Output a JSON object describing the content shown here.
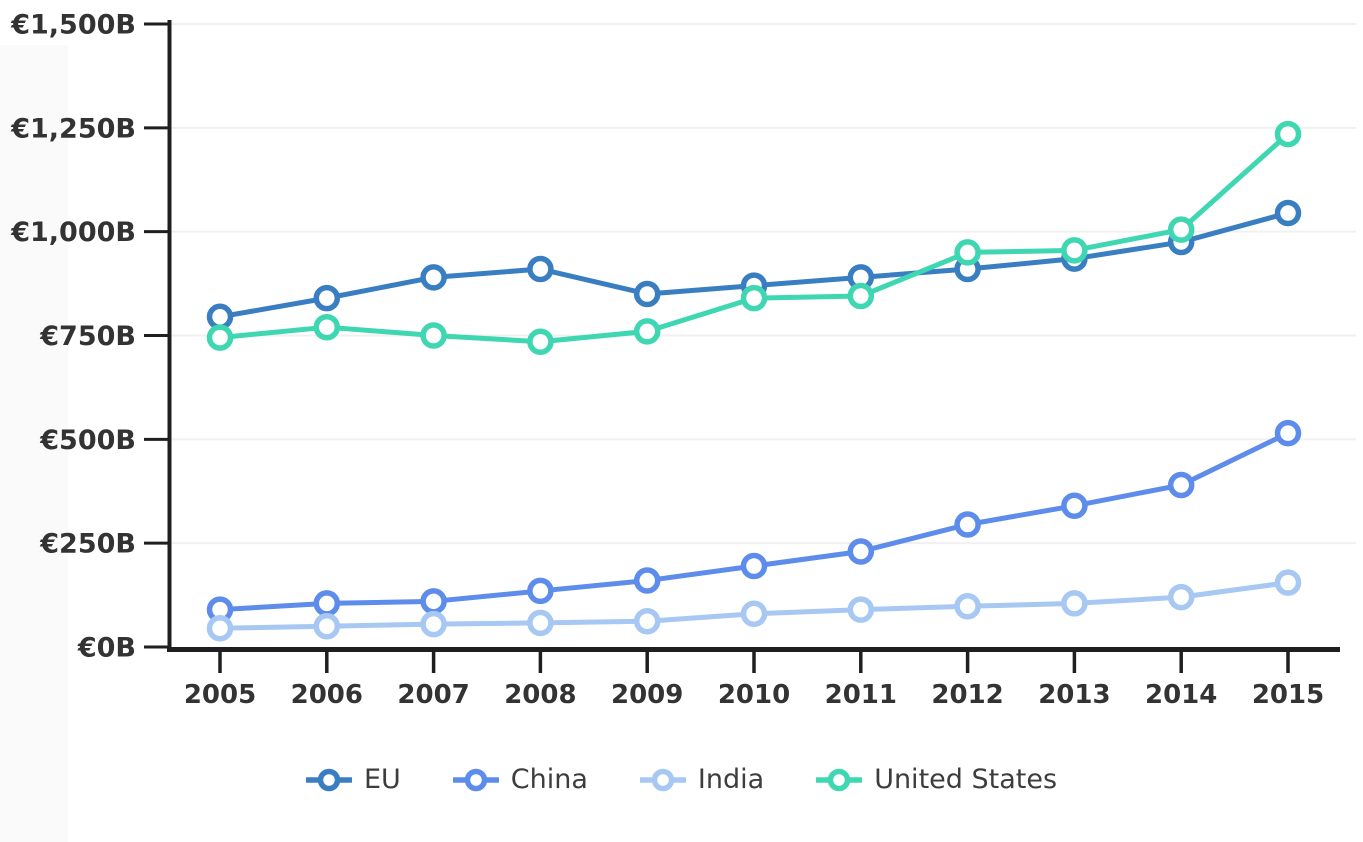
{
  "chart_data": {
    "type": "line",
    "title": "",
    "xlabel": "",
    "ylabel": "",
    "x": [
      2005,
      2006,
      2007,
      2008,
      2009,
      2010,
      2011,
      2012,
      2013,
      2014,
      2015
    ],
    "series": [
      {
        "name": "EU",
        "color": "#3a7ec2",
        "values": [
          795,
          840,
          890,
          910,
          850,
          870,
          890,
          910,
          935,
          975,
          1045
        ]
      },
      {
        "name": "China",
        "color": "#5d8ceb",
        "values": [
          90,
          105,
          110,
          135,
          160,
          195,
          230,
          295,
          340,
          390,
          515
        ]
      },
      {
        "name": "India",
        "color": "#a6c8f2",
        "values": [
          45,
          50,
          55,
          58,
          62,
          80,
          90,
          98,
          105,
          120,
          155
        ]
      },
      {
        "name": "United States",
        "color": "#3fd6b2",
        "values": [
          745,
          770,
          750,
          735,
          760,
          840,
          845,
          950,
          955,
          1005,
          1235
        ]
      }
    ],
    "yticks": [
      0,
      250,
      500,
      750,
      1000,
      1250,
      1500
    ],
    "ytick_labels": [
      "€0B",
      "€250B",
      "€500B",
      "€750B",
      "€1,000B",
      "€1,250B",
      "€1,500B"
    ],
    "ylim": [
      0,
      1500
    ],
    "grid": "horizontal",
    "gridline_color": "#f0f0f0",
    "axis_color": "#1f1f1f",
    "tick_label_color": "#333333",
    "legend_position": "bottom",
    "marker": "open-circle"
  },
  "legend": {
    "items": [
      {
        "label": "EU"
      },
      {
        "label": "China"
      },
      {
        "label": "India"
      },
      {
        "label": "United States"
      }
    ]
  }
}
